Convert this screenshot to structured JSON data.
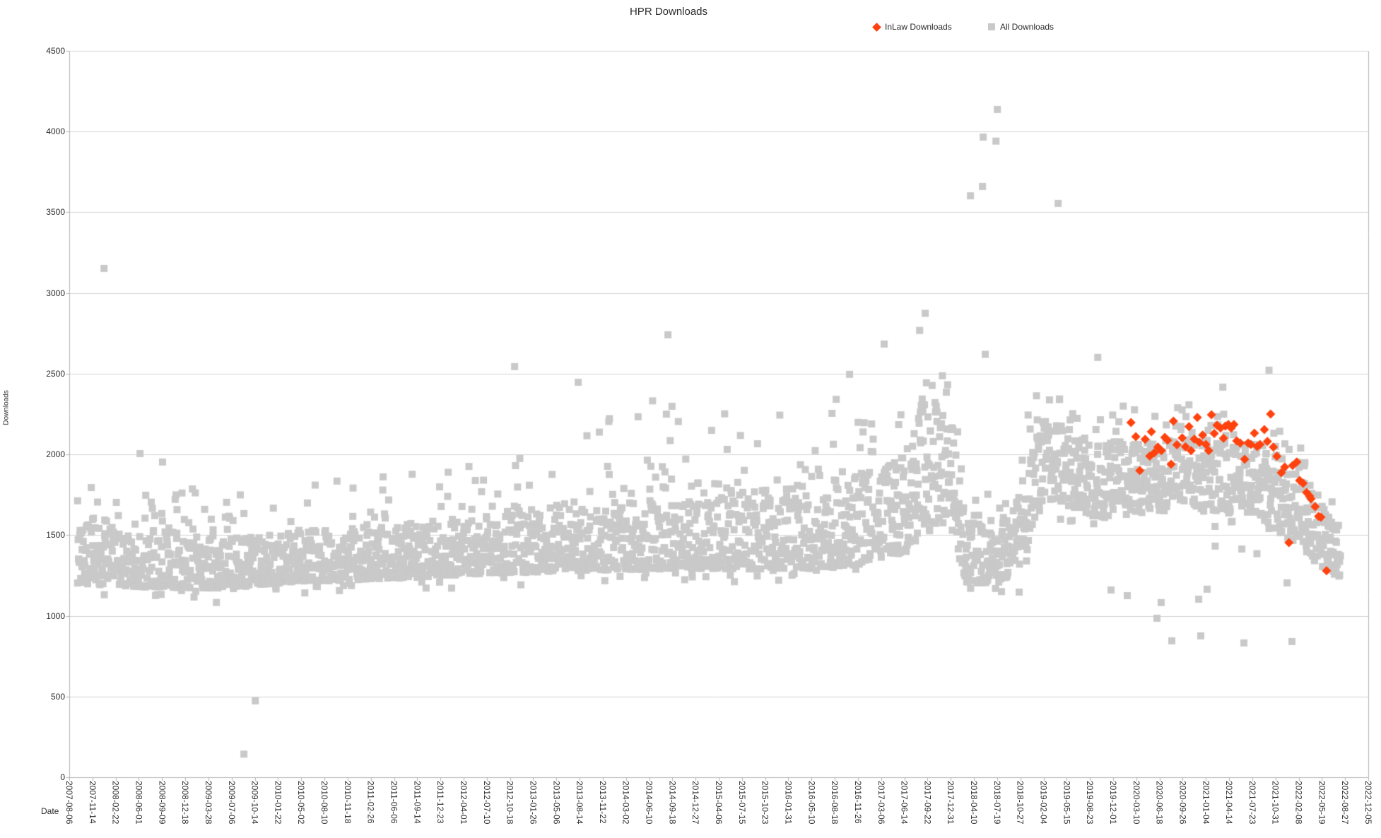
{
  "chart_data": {
    "type": "scatter",
    "title": "HPR Downloads",
    "xlabel": "Date",
    "ylabel": "Downloads",
    "ylim": [
      0,
      4500
    ],
    "y_ticks": [
      0,
      500,
      1000,
      1500,
      2000,
      2500,
      3000,
      3500,
      4000,
      4500
    ],
    "grid": "horizontal",
    "x_axis_start_date": "2007-08-06",
    "x_tick_interval_days": 100,
    "x_total_days": 5600,
    "x_ticks": [
      "2007-08-06",
      "2007-11-14",
      "2008-02-22",
      "2008-06-01",
      "2008-09-09",
      "2008-12-18",
      "2009-03-28",
      "2009-07-06",
      "2009-10-14",
      "2010-01-22",
      "2010-05-02",
      "2010-08-10",
      "2010-11-18",
      "2011-02-26",
      "2011-06-06",
      "2011-09-14",
      "2011-12-23",
      "2012-04-01",
      "2012-07-10",
      "2012-10-18",
      "2013-01-26",
      "2013-05-06",
      "2013-08-14",
      "2013-11-22",
      "2014-03-02",
      "2014-06-10",
      "2014-09-18",
      "2014-12-27",
      "2015-04-06",
      "2015-07-15",
      "2015-10-23",
      "2016-01-31",
      "2016-05-10",
      "2016-08-18",
      "2016-11-26",
      "2017-03-06",
      "2017-06-14",
      "2017-09-22",
      "2017-12-31",
      "2018-04-10",
      "2018-07-19",
      "2018-10-27",
      "2019-02-04",
      "2019-05-15",
      "2019-08-23",
      "2019-12-01",
      "2020-03-10",
      "2020-06-18",
      "2020-09-26",
      "2021-01-04",
      "2021-04-14",
      "2021-07-23",
      "2021-10-31",
      "2022-02-08",
      "2022-05-19",
      "2022-08-27",
      "2022-12-05"
    ],
    "legend": {
      "position": "top",
      "entries": [
        {
          "label": "InLaw Downloads",
          "marker": "diamond",
          "color": "#ff420e"
        },
        {
          "label": "All Downloads",
          "marker": "square",
          "color": "#c9c9c9"
        }
      ]
    },
    "axis_color": "#b3b3b3",
    "grid_color": "#d3d3d3",
    "series": [
      {
        "name": "All Downloads",
        "marker": "square",
        "color": "#c9c9c9",
        "marker_size": 10,
        "cloud": {
          "seed": 1234,
          "day_start": 35,
          "day_end": 5480,
          "day_step": 1.75,
          "tail_prob": 0.09,
          "below_prob": 0.02,
          "below_range": 90,
          "keyframes": [
            [
              35,
              1200,
              1580,
              1830,
              1.5
            ],
            [
              300,
              1180,
              1500,
              1840,
              1.55
            ],
            [
              650,
              1170,
              1480,
              1780,
              1.55
            ],
            [
              1000,
              1210,
              1520,
              1810,
              1.55
            ],
            [
              1400,
              1230,
              1560,
              1920,
              1.55
            ],
            [
              1800,
              1260,
              1610,
              2050,
              1.55
            ],
            [
              2200,
              1280,
              1670,
              2230,
              1.55
            ],
            [
              2600,
              1290,
              1730,
              2370,
              1.5
            ],
            [
              3000,
              1290,
              1780,
              2290,
              1.5
            ],
            [
              3350,
              1300,
              1860,
              2450,
              1.45
            ],
            [
              3600,
              1390,
              1990,
              2570,
              1.4
            ],
            [
              3690,
              1500,
              2280,
              2560,
              1.1
            ],
            [
              3800,
              1560,
              2400,
              2550,
              0.95
            ],
            [
              3830,
              1400,
              1900,
              2200,
              1.3
            ],
            [
              3870,
              1200,
              1560,
              1760,
              1.5
            ],
            [
              4070,
              1210,
              1590,
              1810,
              1.5
            ],
            [
              4130,
              1430,
              1950,
              2260,
              1.2
            ],
            [
              4195,
              1700,
              2200,
              2430,
              1.05
            ],
            [
              4300,
              1680,
              2120,
              2380,
              1.1
            ],
            [
              4430,
              1610,
              2050,
              2300,
              1.15
            ],
            [
              4560,
              1630,
              2060,
              2300,
              1.1
            ],
            [
              4800,
              1660,
              2090,
              2340,
              1.05
            ],
            [
              5100,
              1620,
              2060,
              2300,
              1.05
            ],
            [
              5210,
              1520,
              1980,
              2220,
              1.1
            ],
            [
              5310,
              1420,
              1850,
              2060,
              1.15
            ],
            [
              5400,
              1300,
              1680,
              1860,
              1.2
            ],
            [
              5480,
              1230,
              1490,
              1600,
              1.2
            ]
          ]
        },
        "outliers": [
          [
            150,
            3152
          ],
          [
            305,
            2005
          ],
          [
            402,
            1953
          ],
          [
            753,
            143
          ],
          [
            802,
            473
          ],
          [
            1920,
            2544
          ],
          [
            2194,
            2447
          ],
          [
            2581,
            2741
          ],
          [
            3364,
            2496
          ],
          [
            3513,
            2684
          ],
          [
            3666,
            2768
          ],
          [
            3690,
            2874
          ],
          [
            3885,
            3602
          ],
          [
            3937,
            3660
          ],
          [
            3940,
            3966
          ],
          [
            3995,
            3941
          ],
          [
            4001,
            4137
          ],
          [
            3949,
            2620
          ],
          [
            4095,
            1147
          ],
          [
            4263,
            3555
          ],
          [
            4434,
            2601
          ],
          [
            4491,
            1160
          ],
          [
            4561,
            1125
          ],
          [
            4689,
            985
          ],
          [
            4707,
            1082
          ],
          [
            4753,
            845
          ],
          [
            4869,
            1103
          ],
          [
            4878,
            876
          ],
          [
            4905,
            1165
          ],
          [
            4940,
            1432
          ],
          [
            4973,
            2417
          ],
          [
            5055,
            1414
          ],
          [
            5064,
            832
          ],
          [
            5120,
            1385
          ],
          [
            5172,
            2522
          ],
          [
            5250,
            1204
          ],
          [
            5271,
            841
          ]
        ]
      },
      {
        "name": "InLaw Downloads",
        "marker": "diamond",
        "color": "#ff420e",
        "marker_size": 13,
        "points": [
          [
            4577,
            2198
          ],
          [
            4598,
            2110
          ],
          [
            4615,
            1900
          ],
          [
            4638,
            2093
          ],
          [
            4658,
            1990
          ],
          [
            4665,
            2141
          ],
          [
            4678,
            2010
          ],
          [
            4693,
            2045
          ],
          [
            4708,
            2023
          ],
          [
            4723,
            2106
          ],
          [
            4735,
            2088
          ],
          [
            4750,
            1939
          ],
          [
            4760,
            2206
          ],
          [
            4775,
            2060
          ],
          [
            4798,
            2102
          ],
          [
            4812,
            2048
          ],
          [
            4827,
            2172
          ],
          [
            4836,
            2023
          ],
          [
            4850,
            2095
          ],
          [
            4863,
            2229
          ],
          [
            4872,
            2075
          ],
          [
            4886,
            2120
          ],
          [
            4900,
            2062
          ],
          [
            4912,
            2023
          ],
          [
            4924,
            2246
          ],
          [
            4936,
            2130
          ],
          [
            4948,
            2181
          ],
          [
            4963,
            2163
          ],
          [
            4976,
            2100
          ],
          [
            4984,
            2176
          ],
          [
            4997,
            2185
          ],
          [
            5009,
            2163
          ],
          [
            5021,
            2185
          ],
          [
            5033,
            2084
          ],
          [
            5048,
            2071
          ],
          [
            5067,
            1970
          ],
          [
            5082,
            2071
          ],
          [
            5094,
            2062
          ],
          [
            5109,
            2132
          ],
          [
            5121,
            2049
          ],
          [
            5133,
            2062
          ],
          [
            5152,
            2154
          ],
          [
            5165,
            2080
          ],
          [
            5179,
            2250
          ],
          [
            5191,
            2045
          ],
          [
            5206,
            1988
          ],
          [
            5225,
            1887
          ],
          [
            5240,
            1922
          ],
          [
            5258,
            1453
          ],
          [
            5274,
            1931
          ],
          [
            5292,
            1953
          ],
          [
            5304,
            1839
          ],
          [
            5319,
            1821
          ],
          [
            5334,
            1764
          ],
          [
            5347,
            1742
          ],
          [
            5353,
            1725
          ],
          [
            5371,
            1677
          ],
          [
            5386,
            1616
          ],
          [
            5396,
            1611
          ],
          [
            5420,
            1279
          ]
        ]
      }
    ]
  }
}
